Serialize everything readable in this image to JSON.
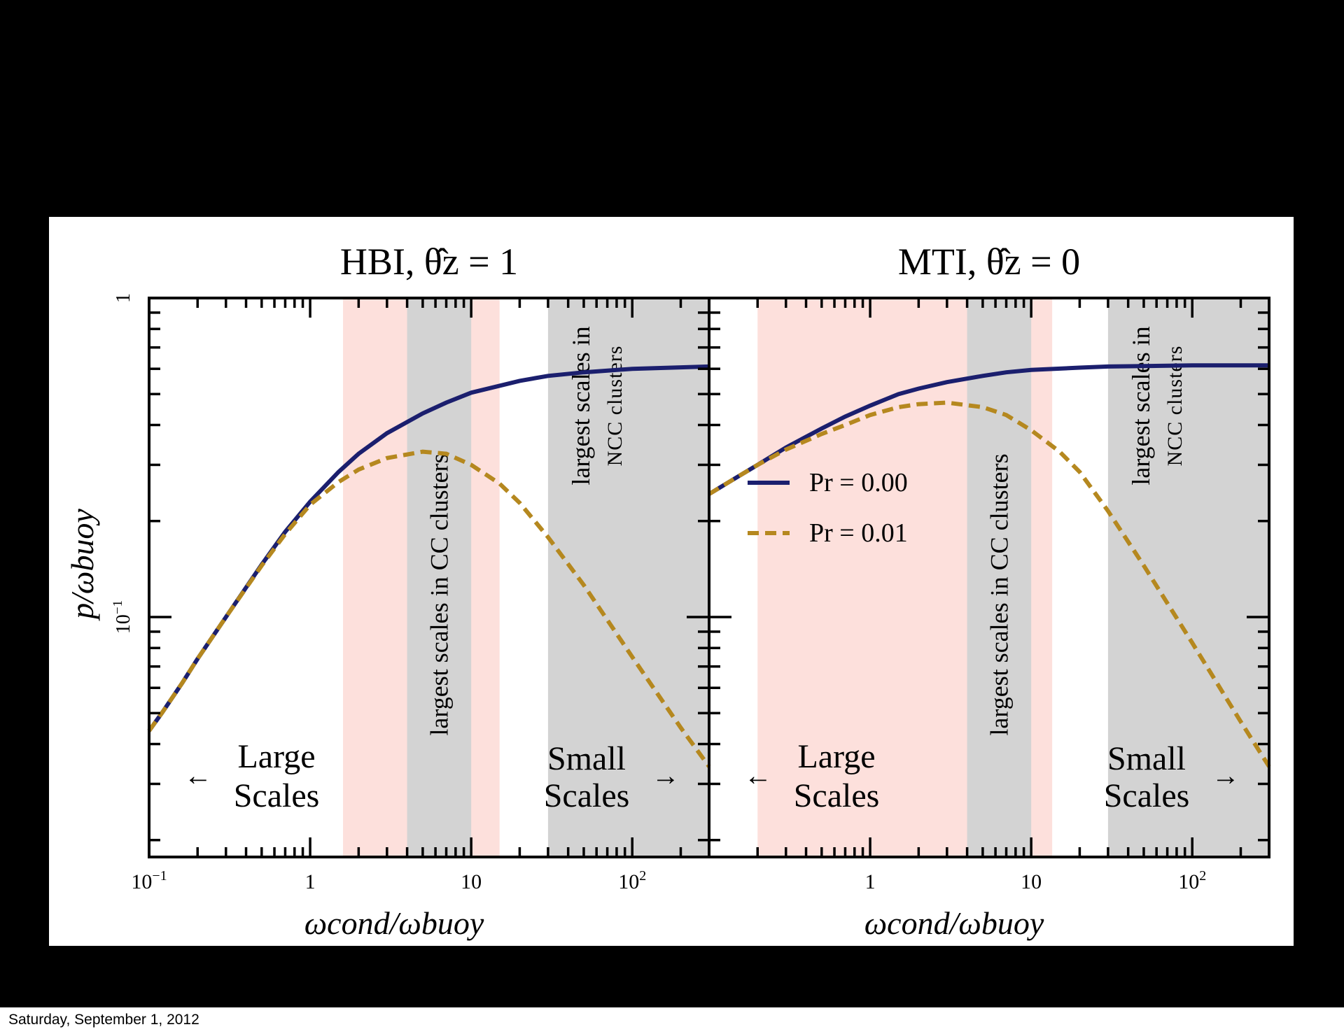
{
  "footer": {
    "date": "Saturday, September 1, 2012"
  },
  "colors": {
    "pr_000": "#1b1f6e",
    "pr_001": "#b5881f",
    "gray_band": "#d3d3d3",
    "pink_band": "#fde0dc"
  },
  "chart_data": [
    {
      "type": "line",
      "title": "HBI, θ̂z = 1",
      "xlabel": "ωcond/ωbuoy",
      "ylabel": "p/ωbuoy",
      "xscale": "log",
      "yscale": "log",
      "xlim": [
        0.1,
        300
      ],
      "ylim": [
        0.0177,
        1
      ],
      "x_ticks": [
        "10⁻¹",
        "1",
        "10",
        "10²"
      ],
      "y_ticks": [
        "10⁻¹",
        "1"
      ],
      "bands": [
        {
          "kind": "pink",
          "x": [
            1.6,
            15
          ]
        },
        {
          "kind": "gray",
          "x": [
            4,
            10
          ],
          "label": "largest scales in CC clusters"
        },
        {
          "kind": "gray",
          "x": [
            30,
            300
          ],
          "label": "largest scales in NCC clusters"
        }
      ],
      "annotations": [
        {
          "text": "← Large Scales",
          "side": "left"
        },
        {
          "text": "Small Scales →",
          "side": "right"
        }
      ],
      "series": [
        {
          "name": "Pr = 0.00",
          "style": "solid",
          "x": [
            0.1,
            0.12,
            0.16,
            0.2,
            0.3,
            0.5,
            0.7,
            1,
            1.5,
            2,
            3,
            5,
            7,
            10,
            20,
            30,
            50,
            100,
            300
          ],
          "y": [
            0.044,
            0.05,
            0.062,
            0.074,
            0.1,
            0.146,
            0.185,
            0.23,
            0.285,
            0.325,
            0.377,
            0.435,
            0.47,
            0.505,
            0.55,
            0.57,
            0.585,
            0.6,
            0.61
          ]
        },
        {
          "name": "Pr = 0.01",
          "style": "dashed",
          "x": [
            0.1,
            0.12,
            0.16,
            0.2,
            0.3,
            0.5,
            0.7,
            1,
            1.5,
            2,
            3,
            5,
            7,
            10,
            15,
            20,
            30,
            50,
            100,
            200,
            300
          ],
          "y": [
            0.044,
            0.05,
            0.062,
            0.074,
            0.1,
            0.145,
            0.182,
            0.225,
            0.265,
            0.29,
            0.315,
            0.33,
            0.325,
            0.3,
            0.262,
            0.228,
            0.178,
            0.126,
            0.075,
            0.045,
            0.034
          ]
        }
      ]
    },
    {
      "type": "line",
      "title": "MTI, θ̂z = 0",
      "xlabel": "ωcond/ωbuoy",
      "ylabel": "",
      "xscale": "log",
      "yscale": "log",
      "xlim": [
        0.1,
        300
      ],
      "ylim": [
        0.0177,
        1
      ],
      "x_ticks": [
        "1",
        "10",
        "10²"
      ],
      "bands": [
        {
          "kind": "pink",
          "x": [
            0.2,
            13.5
          ]
        },
        {
          "kind": "gray",
          "x": [
            4,
            10
          ],
          "label": "largest scales in CC clusters"
        },
        {
          "kind": "gray",
          "x": [
            30,
            300
          ],
          "label": "largest scales in NCC clusters"
        }
      ],
      "annotations": [
        {
          "text": "← Large Scales",
          "side": "left"
        },
        {
          "text": "Small Scales →",
          "side": "right"
        }
      ],
      "legend": {
        "placement": "center-left",
        "entries": [
          "Pr = 0.00",
          "Pr = 0.01"
        ]
      },
      "series": [
        {
          "name": "Pr = 0.00",
          "style": "solid",
          "x": [
            0.1,
            0.15,
            0.2,
            0.3,
            0.5,
            0.7,
            1,
            1.5,
            2,
            3,
            5,
            7,
            10,
            20,
            30,
            50,
            100,
            300
          ],
          "y": [
            0.243,
            0.275,
            0.3,
            0.34,
            0.39,
            0.425,
            0.46,
            0.5,
            0.52,
            0.545,
            0.57,
            0.585,
            0.595,
            0.605,
            0.61,
            0.612,
            0.615,
            0.615
          ]
        },
        {
          "name": "Pr = 0.01",
          "style": "dashed",
          "x": [
            0.1,
            0.15,
            0.2,
            0.3,
            0.5,
            0.7,
            1,
            1.5,
            2,
            3,
            5,
            7,
            10,
            15,
            20,
            30,
            50,
            100,
            200,
            300
          ],
          "y": [
            0.243,
            0.275,
            0.3,
            0.335,
            0.375,
            0.4,
            0.43,
            0.455,
            0.465,
            0.47,
            0.455,
            0.43,
            0.385,
            0.33,
            0.285,
            0.215,
            0.145,
            0.083,
            0.047,
            0.034
          ]
        }
      ]
    }
  ]
}
